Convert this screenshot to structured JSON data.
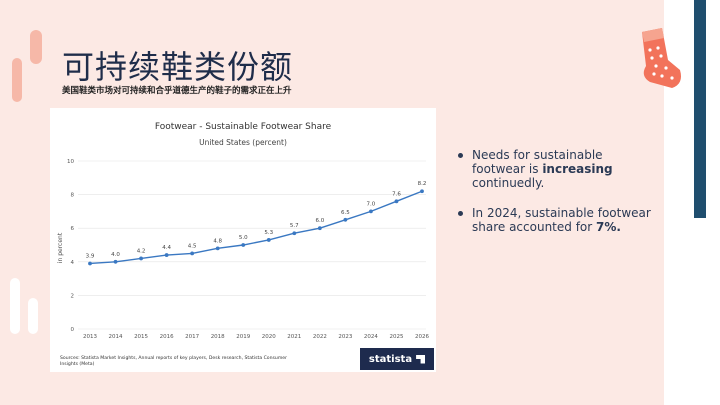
{
  "slide": {
    "title": "可持续鞋类份额",
    "subtitle": "美国鞋类市场对可持续和合乎道德生产的鞋子的需求正在上升"
  },
  "chart_data": {
    "type": "line",
    "title": "Footwear - Sustainable Footwear Share",
    "subtitle": "United States (percent)",
    "xlabel": "",
    "ylabel": "in percent",
    "x": [
      "2013",
      "2014",
      "2015",
      "2016",
      "2017",
      "2018",
      "2019",
      "2020",
      "2021",
      "2022",
      "2023",
      "2024",
      "2025",
      "2026"
    ],
    "series": [
      {
        "values": [
          3.9,
          4.0,
          4.2,
          4.4,
          4.5,
          4.8,
          5.0,
          5.3,
          5.7,
          6.0,
          6.5,
          7.0,
          7.6,
          8.2
        ]
      }
    ],
    "data_labels": [
      "3.9",
      "4.0",
      "4.2",
      "4.4",
      "4.5",
      "4.8",
      "5.0",
      "5.3",
      "5.7",
      "6.0",
      "6.5",
      "7.0",
      "7.6",
      "8.2"
    ],
    "y_ticks": [
      0,
      2,
      4,
      6,
      8,
      10
    ],
    "ylim": [
      0,
      10
    ],
    "grid": true,
    "legend": "none",
    "line_color": "#3a78c2",
    "source": "Sources: Statista Market Insights, Annual reports of key players, Desk research, Statista Consumer Insights (Meta)",
    "logo": "statista"
  },
  "bullets": [
    {
      "before": "Needs for sustainable footwear is ",
      "bold": "increasing",
      "after": " continuedly."
    },
    {
      "before": "In 2024, sustainable footwear share accounted for ",
      "bold": "7%.",
      "after": ""
    }
  ],
  "colors": {
    "background": "#fce9e4",
    "accent_bar": "#1f4e6e",
    "sock": "#f2735b"
  },
  "icons": {
    "decoration": "sock-icon"
  }
}
